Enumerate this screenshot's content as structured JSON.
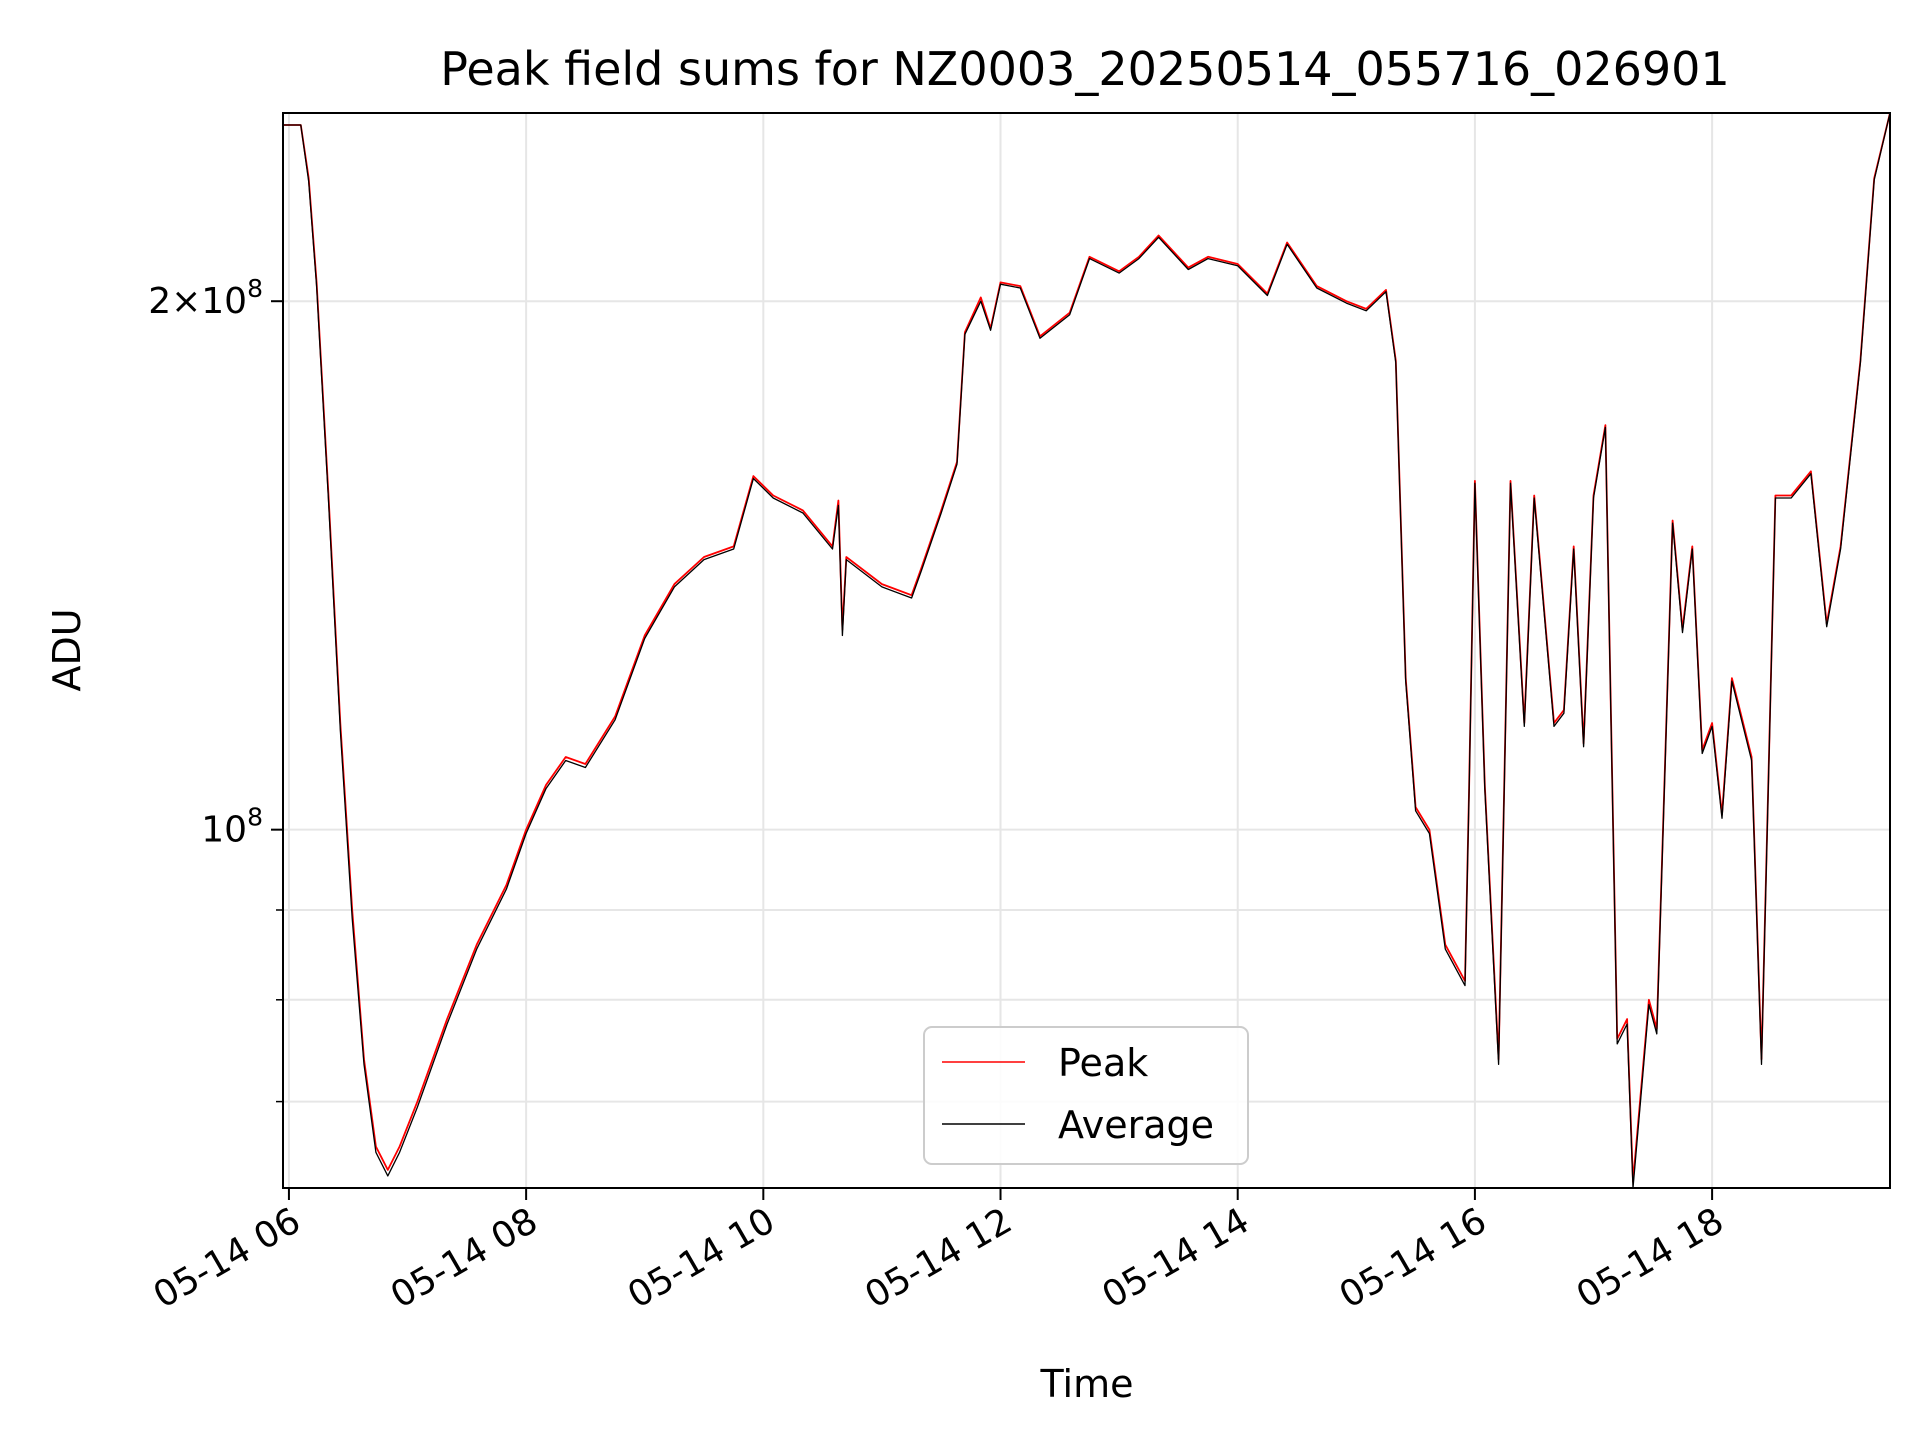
{
  "chart_data": {
    "type": "line",
    "title": "Peak field sums for NZ0003_20250514_055716_026901",
    "xlabel": "Time",
    "ylabel": "ADU",
    "y_scale": "log",
    "grid": true,
    "legend_position": "lower-center",
    "x_range": [
      "05-14 05:57",
      "05-14 19:30"
    ],
    "y_range": [
      62500000.0,
      256000000.0
    ],
    "x_ticks": [
      {
        "time": "05-14 06:00",
        "label": "05-14 06"
      },
      {
        "time": "05-14 08:00",
        "label": "05-14 08"
      },
      {
        "time": "05-14 10:00",
        "label": "05-14 10"
      },
      {
        "time": "05-14 12:00",
        "label": "05-14 12"
      },
      {
        "time": "05-14 14:00",
        "label": "05-14 14"
      },
      {
        "time": "05-14 16:00",
        "label": "05-14 16"
      },
      {
        "time": "05-14 18:00",
        "label": "05-14 18"
      }
    ],
    "y_major_ticks": [
      {
        "value": 100000000.0,
        "base": "10",
        "exponent": "8",
        "coef": ""
      },
      {
        "value": 200000000.0,
        "base": "10",
        "exponent": "8",
        "coef": "2×"
      }
    ],
    "y_minor_gridlines": [
      70000000.0,
      80000000.0,
      90000000.0
    ],
    "series": [
      {
        "name": "Peak",
        "color": "#ff0000",
        "points": [
          [
            "05-14 05:57",
            252000000.0
          ],
          [
            "05-14 06:06",
            252000000.0
          ],
          [
            "05-14 06:10",
            235000000.0
          ],
          [
            "05-14 06:14",
            205000000.0
          ],
          [
            "05-14 06:20",
            155000000.0
          ],
          [
            "05-14 06:26",
            115000000.0
          ],
          [
            "05-14 06:32",
            90000000.0
          ],
          [
            "05-14 06:38",
            74000000.0
          ],
          [
            "05-14 06:44",
            66000000.0
          ],
          [
            "05-14 06:50",
            64000000.0
          ],
          [
            "05-14 06:56",
            66000000.0
          ],
          [
            "05-14 07:05",
            70000000.0
          ],
          [
            "05-14 07:20",
            78000000.0
          ],
          [
            "05-14 07:35",
            86000000.0
          ],
          [
            "05-14 07:50",
            93000000.0
          ],
          [
            "05-14 08:00",
            100000000.0
          ],
          [
            "05-14 08:10",
            106000000.0
          ],
          [
            "05-14 08:20",
            110000000.0
          ],
          [
            "05-14 08:30",
            109000000.0
          ],
          [
            "05-14 08:45",
            116000000.0
          ],
          [
            "05-14 09:00",
            129000000.0
          ],
          [
            "05-14 09:15",
            138000000.0
          ],
          [
            "05-14 09:30",
            143000000.0
          ],
          [
            "05-14 09:45",
            145000000.0
          ],
          [
            "05-14 09:55",
            159000000.0
          ],
          [
            "05-14 10:05",
            155000000.0
          ],
          [
            "05-14 10:20",
            152000000.0
          ],
          [
            "05-14 10:35",
            145000000.0
          ],
          [
            "05-14 10:38",
            154000000.0
          ],
          [
            "05-14 10:40",
            130000000.0
          ],
          [
            "05-14 10:42",
            143000000.0
          ],
          [
            "05-14 11:00",
            138000000.0
          ],
          [
            "05-14 11:15",
            136000000.0
          ],
          [
            "05-14 11:20",
            141000000.0
          ],
          [
            "05-14 11:30",
            152000000.0
          ],
          [
            "05-14 11:38",
            162000000.0
          ],
          [
            "05-14 11:42",
            192000000.0
          ],
          [
            "05-14 11:50",
            201000000.0
          ],
          [
            "05-14 11:55",
            193000000.0
          ],
          [
            "05-14 12:00",
            205000000.0
          ],
          [
            "05-14 12:10",
            204000000.0
          ],
          [
            "05-14 12:20",
            191000000.0
          ],
          [
            "05-14 12:35",
            197000000.0
          ],
          [
            "05-14 12:45",
            212000000.0
          ],
          [
            "05-14 13:00",
            208000000.0
          ],
          [
            "05-14 13:10",
            212000000.0
          ],
          [
            "05-14 13:20",
            218000000.0
          ],
          [
            "05-14 13:35",
            209000000.0
          ],
          [
            "05-14 13:45",
            212000000.0
          ],
          [
            "05-14 14:00",
            210000000.0
          ],
          [
            "05-14 14:15",
            202000000.0
          ],
          [
            "05-14 14:25",
            216000000.0
          ],
          [
            "05-14 14:40",
            204000000.0
          ],
          [
            "05-14 14:55",
            200000000.0
          ],
          [
            "05-14 15:05",
            198000000.0
          ],
          [
            "05-14 15:15",
            203000000.0
          ],
          [
            "05-14 15:20",
            185000000.0
          ],
          [
            "05-14 15:25",
            122000000.0
          ],
          [
            "05-14 15:30",
            103000000.0
          ],
          [
            "05-14 15:37",
            100000000.0
          ],
          [
            "05-14 15:45",
            86000000.0
          ],
          [
            "05-14 15:55",
            82000000.0
          ],
          [
            "05-14 15:57",
            105000000.0
          ],
          [
            "05-14 16:00",
            158000000.0
          ],
          [
            "05-14 16:05",
            106000000.0
          ],
          [
            "05-14 16:12",
            74000000.0
          ],
          [
            "05-14 16:18",
            158000000.0
          ],
          [
            "05-14 16:25",
            115000000.0
          ],
          [
            "05-14 16:30",
            155000000.0
          ],
          [
            "05-14 16:40",
            115000000.0
          ],
          [
            "05-14 16:45",
            117000000.0
          ],
          [
            "05-14 16:50",
            145000000.0
          ],
          [
            "05-14 16:55",
            112000000.0
          ],
          [
            "05-14 17:00",
            155000000.0
          ],
          [
            "05-14 17:06",
            170000000.0
          ],
          [
            "05-14 17:12",
            76000000.0
          ],
          [
            "05-14 17:17",
            78000000.0
          ],
          [
            "05-14 17:20",
            63000000.0
          ],
          [
            "05-14 17:28",
            80000000.0
          ],
          [
            "05-14 17:32",
            77000000.0
          ],
          [
            "05-14 17:40",
            150000000.0
          ],
          [
            "05-14 17:45",
            130000000.0
          ],
          [
            "05-14 17:50",
            145000000.0
          ],
          [
            "05-14 17:55",
            111000000.0
          ],
          [
            "05-14 18:00",
            115000000.0
          ],
          [
            "05-14 18:05",
            102000000.0
          ],
          [
            "05-14 18:10",
            122000000.0
          ],
          [
            "05-14 18:20",
            110000000.0
          ],
          [
            "05-14 18:25",
            74000000.0
          ],
          [
            "05-14 18:32",
            155000000.0
          ],
          [
            "05-14 18:40",
            155000000.0
          ],
          [
            "05-14 18:50",
            160000000.0
          ],
          [
            "05-14 18:58",
            131000000.0
          ],
          [
            "05-14 19:05",
            145000000.0
          ],
          [
            "05-14 19:15",
            185000000.0
          ],
          [
            "05-14 19:22",
            235000000.0
          ],
          [
            "05-14 19:30",
            256000000.0
          ]
        ]
      },
      {
        "name": "Average",
        "color": "#000000",
        "points": [
          [
            "05-14 05:57",
            252000000.0
          ],
          [
            "05-14 06:06",
            252000000.0
          ],
          [
            "05-14 06:10",
            234000000.0
          ],
          [
            "05-14 06:14",
            204000000.0
          ],
          [
            "05-14 06:20",
            154000000.0
          ],
          [
            "05-14 06:26",
            114000000.0
          ],
          [
            "05-14 06:32",
            89000000.0
          ],
          [
            "05-14 06:38",
            73500000.0
          ],
          [
            "05-14 06:44",
            65500000.0
          ],
          [
            "05-14 06:50",
            63500000.0
          ],
          [
            "05-14 06:56",
            65500000.0
          ],
          [
            "05-14 07:05",
            69500000.0
          ],
          [
            "05-14 07:20",
            77500000.0
          ],
          [
            "05-14 07:35",
            85500000.0
          ],
          [
            "05-14 07:50",
            92500000.0
          ],
          [
            "05-14 08:00",
            99500000.0
          ],
          [
            "05-14 08:10",
            105500000.0
          ],
          [
            "05-14 08:20",
            109500000.0
          ],
          [
            "05-14 08:30",
            108500000.0
          ],
          [
            "05-14 08:45",
            115500000.0
          ],
          [
            "05-14 09:00",
            128500000.0
          ],
          [
            "05-14 09:15",
            137500000.0
          ],
          [
            "05-14 09:30",
            142500000.0
          ],
          [
            "05-14 09:45",
            144500000.0
          ],
          [
            "05-14 09:55",
            158500000.0
          ],
          [
            "05-14 10:05",
            154500000.0
          ],
          [
            "05-14 10:20",
            151500000.0
          ],
          [
            "05-14 10:35",
            144500000.0
          ],
          [
            "05-14 10:38",
            153000000.0
          ],
          [
            "05-14 10:40",
            129000000.0
          ],
          [
            "05-14 10:42",
            142500000.0
          ],
          [
            "05-14 11:00",
            137500000.0
          ],
          [
            "05-14 11:15",
            135500000.0
          ],
          [
            "05-14 11:20",
            140500000.0
          ],
          [
            "05-14 11:30",
            151500000.0
          ],
          [
            "05-14 11:38",
            161500000.0
          ],
          [
            "05-14 11:42",
            191500000.0
          ],
          [
            "05-14 11:50",
            200000000.0
          ],
          [
            "05-14 11:55",
            192500000.0
          ],
          [
            "05-14 12:00",
            204500000.0
          ],
          [
            "05-14 12:10",
            203500000.0
          ],
          [
            "05-14 12:20",
            190500000.0
          ],
          [
            "05-14 12:35",
            196500000.0
          ],
          [
            "05-14 12:45",
            211500000.0
          ],
          [
            "05-14 13:00",
            207500000.0
          ],
          [
            "05-14 13:10",
            211500000.0
          ],
          [
            "05-14 13:20",
            217500000.0
          ],
          [
            "05-14 13:35",
            208500000.0
          ],
          [
            "05-14 13:45",
            211500000.0
          ],
          [
            "05-14 14:00",
            209500000.0
          ],
          [
            "05-14 14:15",
            201500000.0
          ],
          [
            "05-14 14:25",
            215500000.0
          ],
          [
            "05-14 14:40",
            203500000.0
          ],
          [
            "05-14 14:55",
            199500000.0
          ],
          [
            "05-14 15:05",
            197500000.0
          ],
          [
            "05-14 15:15",
            202500000.0
          ],
          [
            "05-14 15:20",
            184500000.0
          ],
          [
            "05-14 15:25",
            121500000.0
          ],
          [
            "05-14 15:30",
            102500000.0
          ],
          [
            "05-14 15:37",
            99500000.0
          ],
          [
            "05-14 15:45",
            85500000.0
          ],
          [
            "05-14 15:55",
            81500000.0
          ],
          [
            "05-14 15:57",
            104500000.0
          ],
          [
            "05-14 16:00",
            157500000.0
          ],
          [
            "05-14 16:05",
            105500000.0
          ],
          [
            "05-14 16:12",
            73500000.0
          ],
          [
            "05-14 16:18",
            157500000.0
          ],
          [
            "05-14 16:25",
            114500000.0
          ],
          [
            "05-14 16:30",
            154500000.0
          ],
          [
            "05-14 16:40",
            114500000.0
          ],
          [
            "05-14 16:45",
            116500000.0
          ],
          [
            "05-14 16:50",
            144500000.0
          ],
          [
            "05-14 16:55",
            111500000.0
          ],
          [
            "05-14 17:00",
            154500000.0
          ],
          [
            "05-14 17:06",
            169500000.0
          ],
          [
            "05-14 17:12",
            75500000.0
          ],
          [
            "05-14 17:17",
            77500000.0
          ],
          [
            "05-14 17:20",
            62500000.0
          ],
          [
            "05-14 17:28",
            79500000.0
          ],
          [
            "05-14 17:32",
            76500000.0
          ],
          [
            "05-14 17:40",
            149500000.0
          ],
          [
            "05-14 17:45",
            129500000.0
          ],
          [
            "05-14 17:50",
            144500000.0
          ],
          [
            "05-14 17:55",
            110500000.0
          ],
          [
            "05-14 18:00",
            114500000.0
          ],
          [
            "05-14 18:05",
            101500000.0
          ],
          [
            "05-14 18:10",
            121500000.0
          ],
          [
            "05-14 18:20",
            109500000.0
          ],
          [
            "05-14 18:25",
            73500000.0
          ],
          [
            "05-14 18:32",
            154500000.0
          ],
          [
            "05-14 18:40",
            154500000.0
          ],
          [
            "05-14 18:50",
            159500000.0
          ],
          [
            "05-14 18:58",
            130500000.0
          ],
          [
            "05-14 19:05",
            144500000.0
          ],
          [
            "05-14 19:15",
            184500000.0
          ],
          [
            "05-14 19:22",
            234500000.0
          ],
          [
            "05-14 19:30",
            256000000.0
          ]
        ]
      }
    ]
  }
}
